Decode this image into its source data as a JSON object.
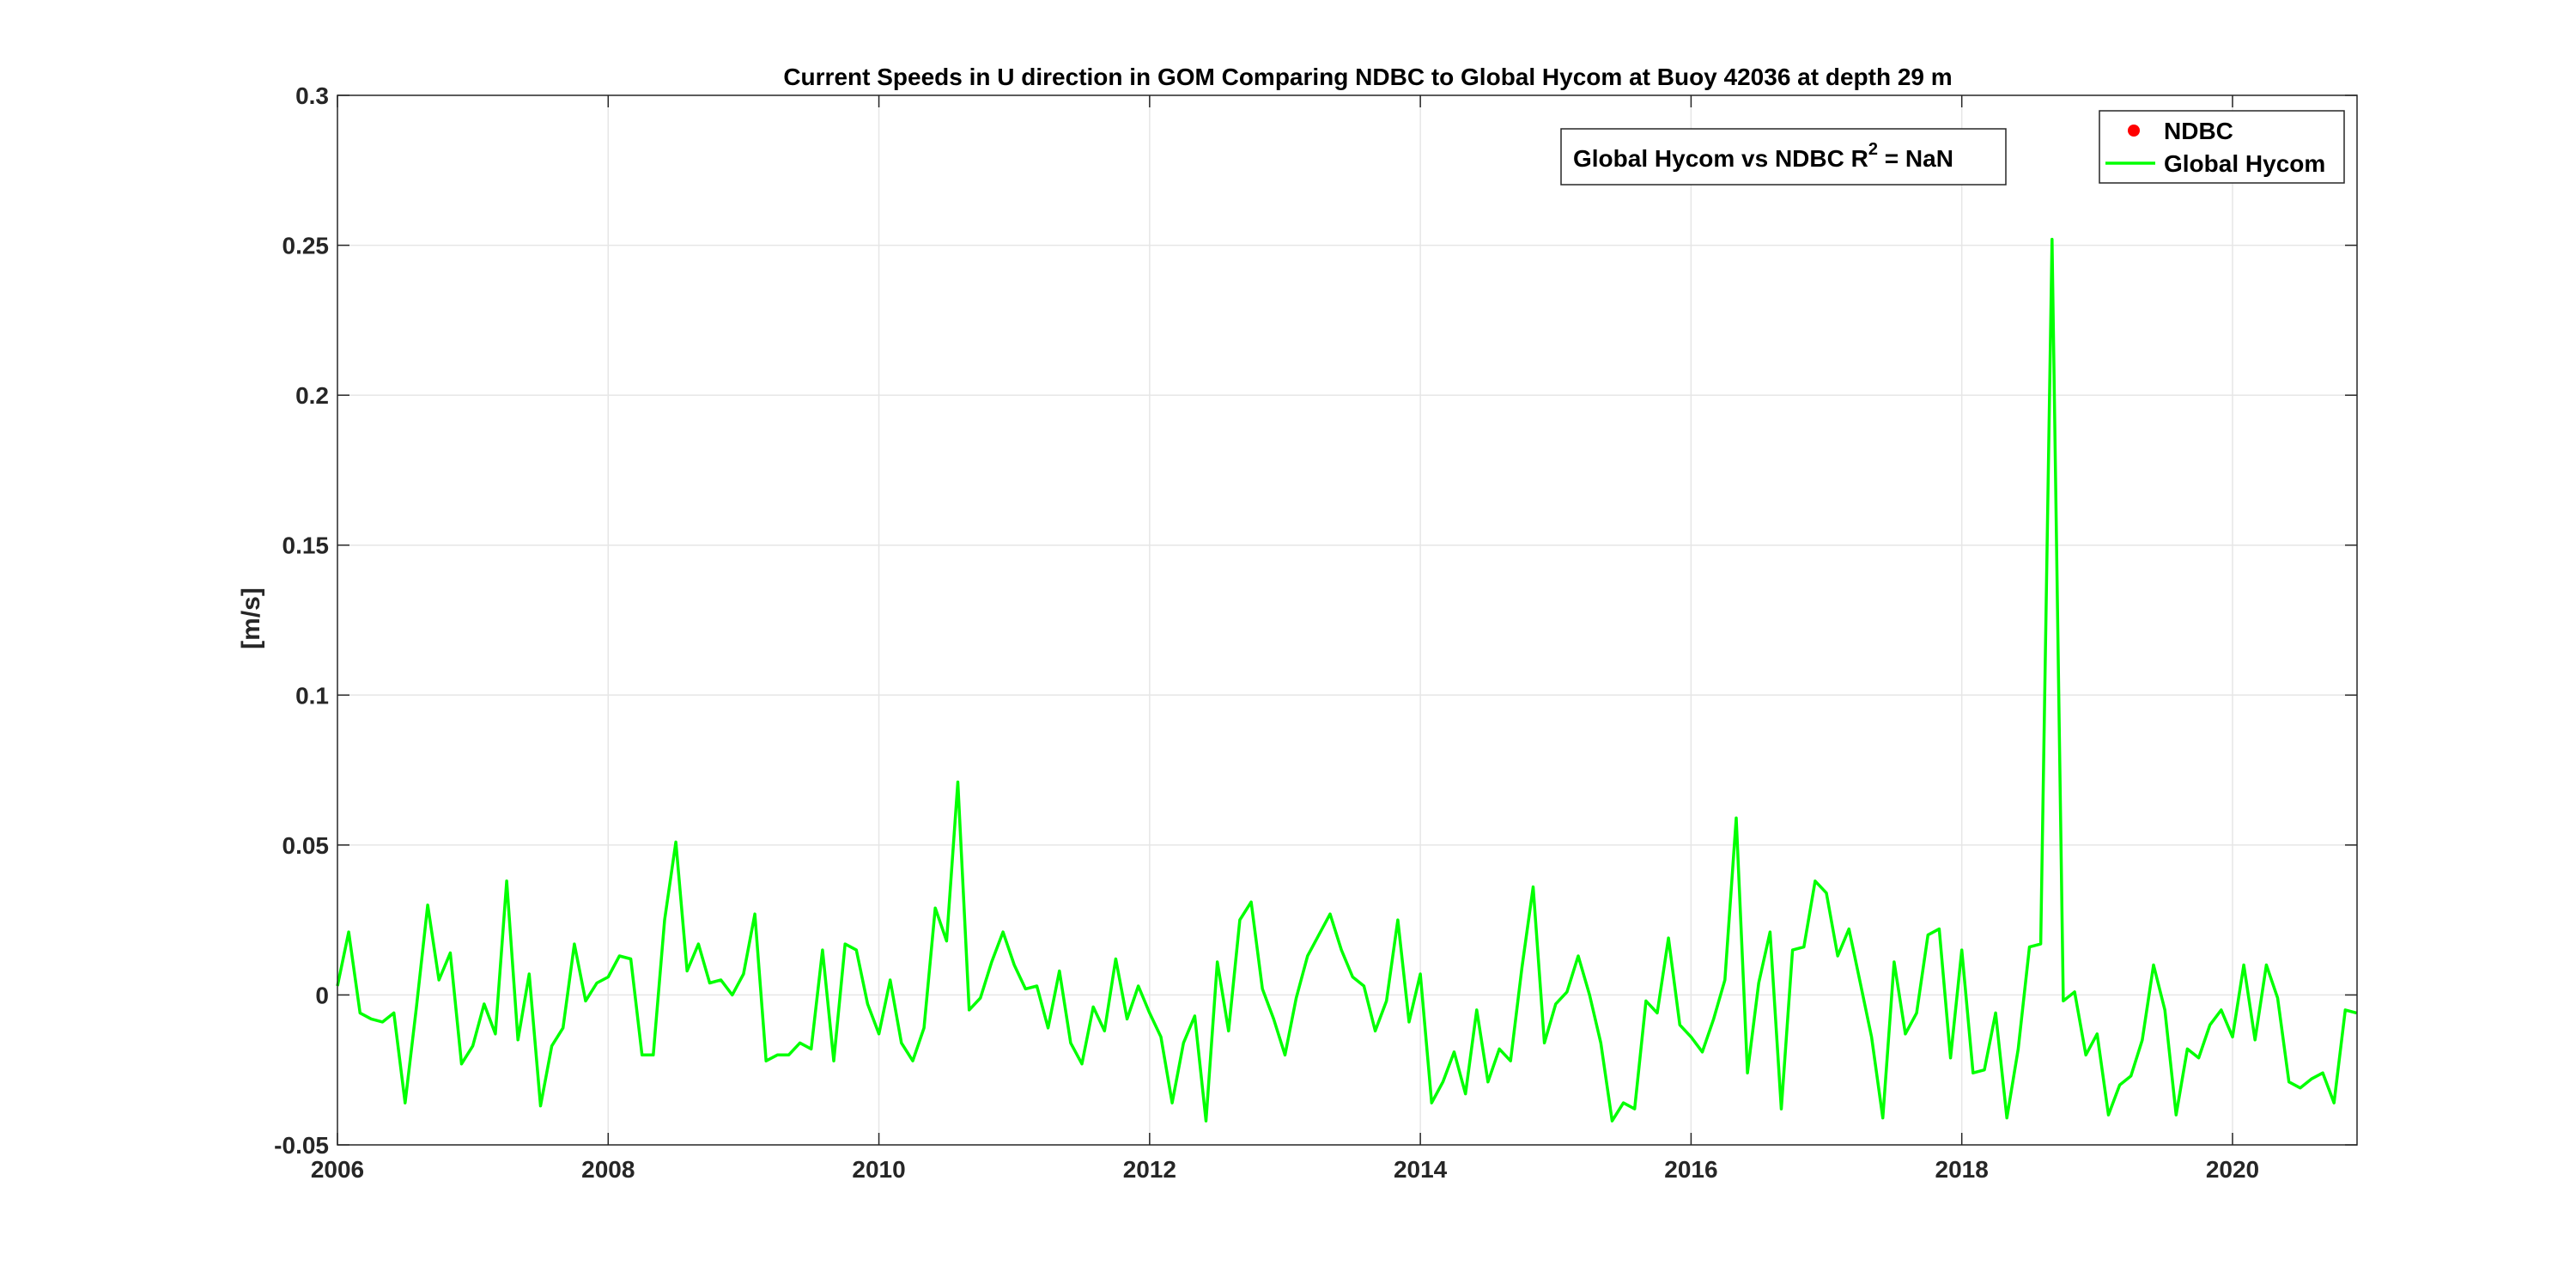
{
  "chart_data": {
    "type": "line",
    "title": "Current Speeds in U direction in GOM Comparing NDBC to Global Hycom at Buoy  42036  at depth  29 m",
    "xlabel": "",
    "ylabel": "[m/s]",
    "xlim": [
      2006,
      2020.92
    ],
    "ylim": [
      -0.05,
      0.3
    ],
    "x_ticks": [
      2006,
      2008,
      2010,
      2012,
      2014,
      2016,
      2018,
      2020
    ],
    "x_tick_labels": [
      "2006",
      "2008",
      "2010",
      "2012",
      "2014",
      "2016",
      "2018",
      "2020"
    ],
    "y_ticks": [
      -0.05,
      0,
      0.05,
      0.1,
      0.15,
      0.2,
      0.25,
      0.3
    ],
    "y_tick_labels": [
      "-0.05",
      "0",
      "0.05",
      "0.1",
      "0.15",
      "0.2",
      "0.25",
      "0.3"
    ],
    "grid": true,
    "legend": {
      "placement": "top-right",
      "entries": [
        {
          "label": "NDBC",
          "marker": "dot",
          "color": "#ff0000"
        },
        {
          "label": "Global Hycom",
          "marker": "line",
          "color": "#00ff00"
        }
      ]
    },
    "annotation": {
      "prefix": "Global Hycom vs NDBC R",
      "superscript": "2",
      "suffix": " = NaN"
    },
    "series": [
      {
        "name": "Global Hycom",
        "color": "#00ff00",
        "start_year": 2006,
        "step_months": 1,
        "values": [
          0.003,
          0.021,
          -0.006,
          -0.008,
          -0.009,
          -0.006,
          -0.036,
          -0.004,
          0.03,
          0.005,
          0.014,
          -0.023,
          -0.017,
          -0.003,
          -0.013,
          0.038,
          -0.015,
          0.007,
          -0.037,
          -0.017,
          -0.011,
          0.017,
          -0.002,
          0.004,
          0.006,
          0.013,
          0.012,
          -0.02,
          -0.02,
          0.025,
          0.051,
          0.008,
          0.017,
          0.004,
          0.005,
          0.0,
          0.007,
          0.027,
          -0.022,
          -0.02,
          -0.02,
          -0.016,
          -0.018,
          0.015,
          -0.022,
          0.017,
          0.015,
          -0.003,
          -0.013,
          0.005,
          -0.016,
          -0.022,
          -0.011,
          0.029,
          0.018,
          0.071,
          -0.005,
          -0.001,
          0.011,
          0.021,
          0.01,
          0.002,
          0.003,
          -0.011,
          0.008,
          -0.016,
          -0.023,
          -0.004,
          -0.012,
          0.012,
          -0.008,
          0.003,
          -0.006,
          -0.014,
          -0.036,
          -0.016,
          -0.007,
          -0.042,
          0.011,
          -0.012,
          0.025,
          0.031,
          0.002,
          -0.008,
          -0.02,
          -0.001,
          0.013,
          0.02,
          0.027,
          0.015,
          0.006,
          0.003,
          -0.012,
          -0.002,
          0.025,
          -0.009,
          0.007,
          -0.036,
          -0.029,
          -0.019,
          -0.033,
          -0.005,
          -0.029,
          -0.018,
          -0.022,
          0.009,
          0.036,
          -0.016,
          -0.003,
          0.001,
          0.013,
          0.0,
          -0.016,
          -0.042,
          -0.036,
          -0.038,
          -0.002,
          -0.006,
          0.019,
          -0.01,
          -0.014,
          -0.019,
          -0.008,
          0.005,
          0.059,
          -0.026,
          0.004,
          0.021,
          -0.038,
          0.015,
          0.016,
          0.038,
          0.034,
          0.013,
          0.022,
          0.004,
          -0.014,
          -0.041,
          0.011,
          -0.013,
          -0.006,
          0.02,
          0.022,
          -0.021,
          0.015,
          -0.026,
          -0.025,
          -0.006,
          -0.041,
          -0.018,
          0.016,
          0.017,
          0.252,
          -0.002,
          0.001,
          -0.02,
          -0.013,
          -0.04,
          -0.03,
          -0.027,
          -0.015,
          0.01,
          -0.005,
          -0.04,
          -0.018,
          -0.021,
          -0.01,
          -0.005,
          -0.014,
          0.01,
          -0.015,
          0.01,
          -0.001,
          -0.029,
          -0.031,
          -0.028,
          -0.026,
          -0.036,
          -0.005,
          -0.006
        ]
      },
      {
        "name": "NDBC",
        "color": "#ff0000",
        "values": []
      }
    ]
  }
}
